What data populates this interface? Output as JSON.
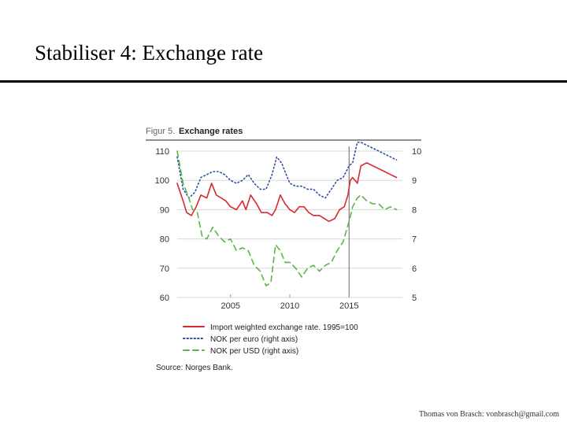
{
  "slide": {
    "title": "Stabiliser 4: Exchange rate",
    "footer": "Thomas von Brasch: vonbrasch@gmail.com"
  },
  "colors": {
    "import_weighted": "#d9282f",
    "nok_euro": "#2f4fa2",
    "nok_usd": "#5bb548",
    "grid": "#d8d8d8",
    "figure_label": "#666666"
  },
  "chart_data": {
    "type": "line",
    "figure_label": "Figur 5.",
    "title": "Exchange rates",
    "source": "Source: Norges Bank.",
    "x_ticks": [
      2005,
      2010,
      2015
    ],
    "xlim": [
      2000.5,
      2019.5
    ],
    "vertical_marker_x": 2015,
    "left_axis": {
      "ticks": [
        60,
        70,
        80,
        90,
        100,
        110
      ],
      "ylim": [
        60,
        110
      ]
    },
    "right_axis": {
      "ticks": [
        5,
        6,
        7,
        8,
        9,
        10
      ],
      "ylim": [
        5,
        10
      ]
    },
    "grid": "horizontal",
    "legend_position": "bottom",
    "series": [
      {
        "name": "Import weighted exchange rate. 1995=100",
        "axis": "left",
        "style": "solid",
        "x": [
          2000.5,
          2001,
          2001.3,
          2001.7,
          2002.1,
          2002.5,
          2003,
          2003.4,
          2003.8,
          2004.2,
          2004.6,
          2005,
          2005.5,
          2006,
          2006.3,
          2006.7,
          2007.2,
          2007.6,
          2008.1,
          2008.5,
          2008.8,
          2009.2,
          2009.6,
          2010,
          2010.4,
          2010.8,
          2011.2,
          2011.6,
          2012,
          2012.5,
          2012.9,
          2013.3,
          2013.8,
          2014.2,
          2014.6,
          2014.9,
          2015.1,
          2015.3,
          2015.7,
          2016,
          2016.5,
          2017,
          2017.5,
          2018,
          2018.5,
          2019
        ],
        "values": [
          99,
          93,
          89,
          88,
          91,
          95,
          94,
          99,
          95,
          94,
          93,
          91,
          90,
          93,
          90,
          95,
          92,
          89,
          89,
          88,
          90,
          95,
          92,
          90,
          89,
          91,
          91,
          89,
          88,
          88,
          87,
          86,
          87,
          90,
          91,
          95,
          100,
          101,
          99,
          105,
          106,
          105,
          104,
          103,
          102,
          101
        ]
      },
      {
        "name": "NOK per euro (right axis)",
        "axis": "right",
        "style": "dotted",
        "x": [
          2000.5,
          2001,
          2001.5,
          2002,
          2002.5,
          2003,
          2003.5,
          2004,
          2004.5,
          2005,
          2005.5,
          2006,
          2006.5,
          2007,
          2007.5,
          2008,
          2008.5,
          2008.9,
          2009.3,
          2009.7,
          2010,
          2010.5,
          2011,
          2011.5,
          2012,
          2012.5,
          2013,
          2013.5,
          2014,
          2014.5,
          2015,
          2015.3,
          2015.7,
          2016,
          2016.5,
          2017,
          2017.5,
          2018,
          2018.5,
          2019
        ],
        "values": [
          9.8,
          8.7,
          8.4,
          8.6,
          9.1,
          9.2,
          9.3,
          9.3,
          9.2,
          9.0,
          8.9,
          9.0,
          9.2,
          8.9,
          8.7,
          8.7,
          9.2,
          9.8,
          9.6,
          9.2,
          8.9,
          8.8,
          8.8,
          8.7,
          8.7,
          8.5,
          8.4,
          8.7,
          9.0,
          9.1,
          9.5,
          9.6,
          10.3,
          10.3,
          10.2,
          10.1,
          10.0,
          9.9,
          9.8,
          9.7
        ]
      },
      {
        "name": "NOK per USD (right axis)",
        "axis": "right",
        "style": "dashed",
        "x": [
          2000.5,
          2001,
          2001.4,
          2001.8,
          2002.2,
          2002.6,
          2003,
          2003.5,
          2004,
          2004.5,
          2005,
          2005.5,
          2006,
          2006.5,
          2007,
          2007.5,
          2008,
          2008.4,
          2008.8,
          2009.2,
          2009.6,
          2010,
          2010.5,
          2011,
          2011.5,
          2012,
          2012.5,
          2013,
          2013.5,
          2014,
          2014.5,
          2015,
          2015.3,
          2015.7,
          2016,
          2016.5,
          2017,
          2017.5,
          2018,
          2018.5,
          2019
        ],
        "values": [
          10.0,
          8.9,
          8.5,
          8.0,
          7.9,
          7.1,
          7.0,
          7.4,
          7.1,
          6.9,
          7.0,
          6.6,
          6.7,
          6.6,
          6.1,
          5.9,
          5.4,
          5.5,
          6.8,
          6.6,
          6.2,
          6.2,
          6.0,
          5.7,
          6.0,
          6.1,
          5.9,
          6.1,
          6.2,
          6.6,
          6.9,
          7.6,
          8.1,
          8.4,
          8.5,
          8.3,
          8.2,
          8.2,
          8.0,
          8.1,
          8.0
        ]
      }
    ]
  }
}
